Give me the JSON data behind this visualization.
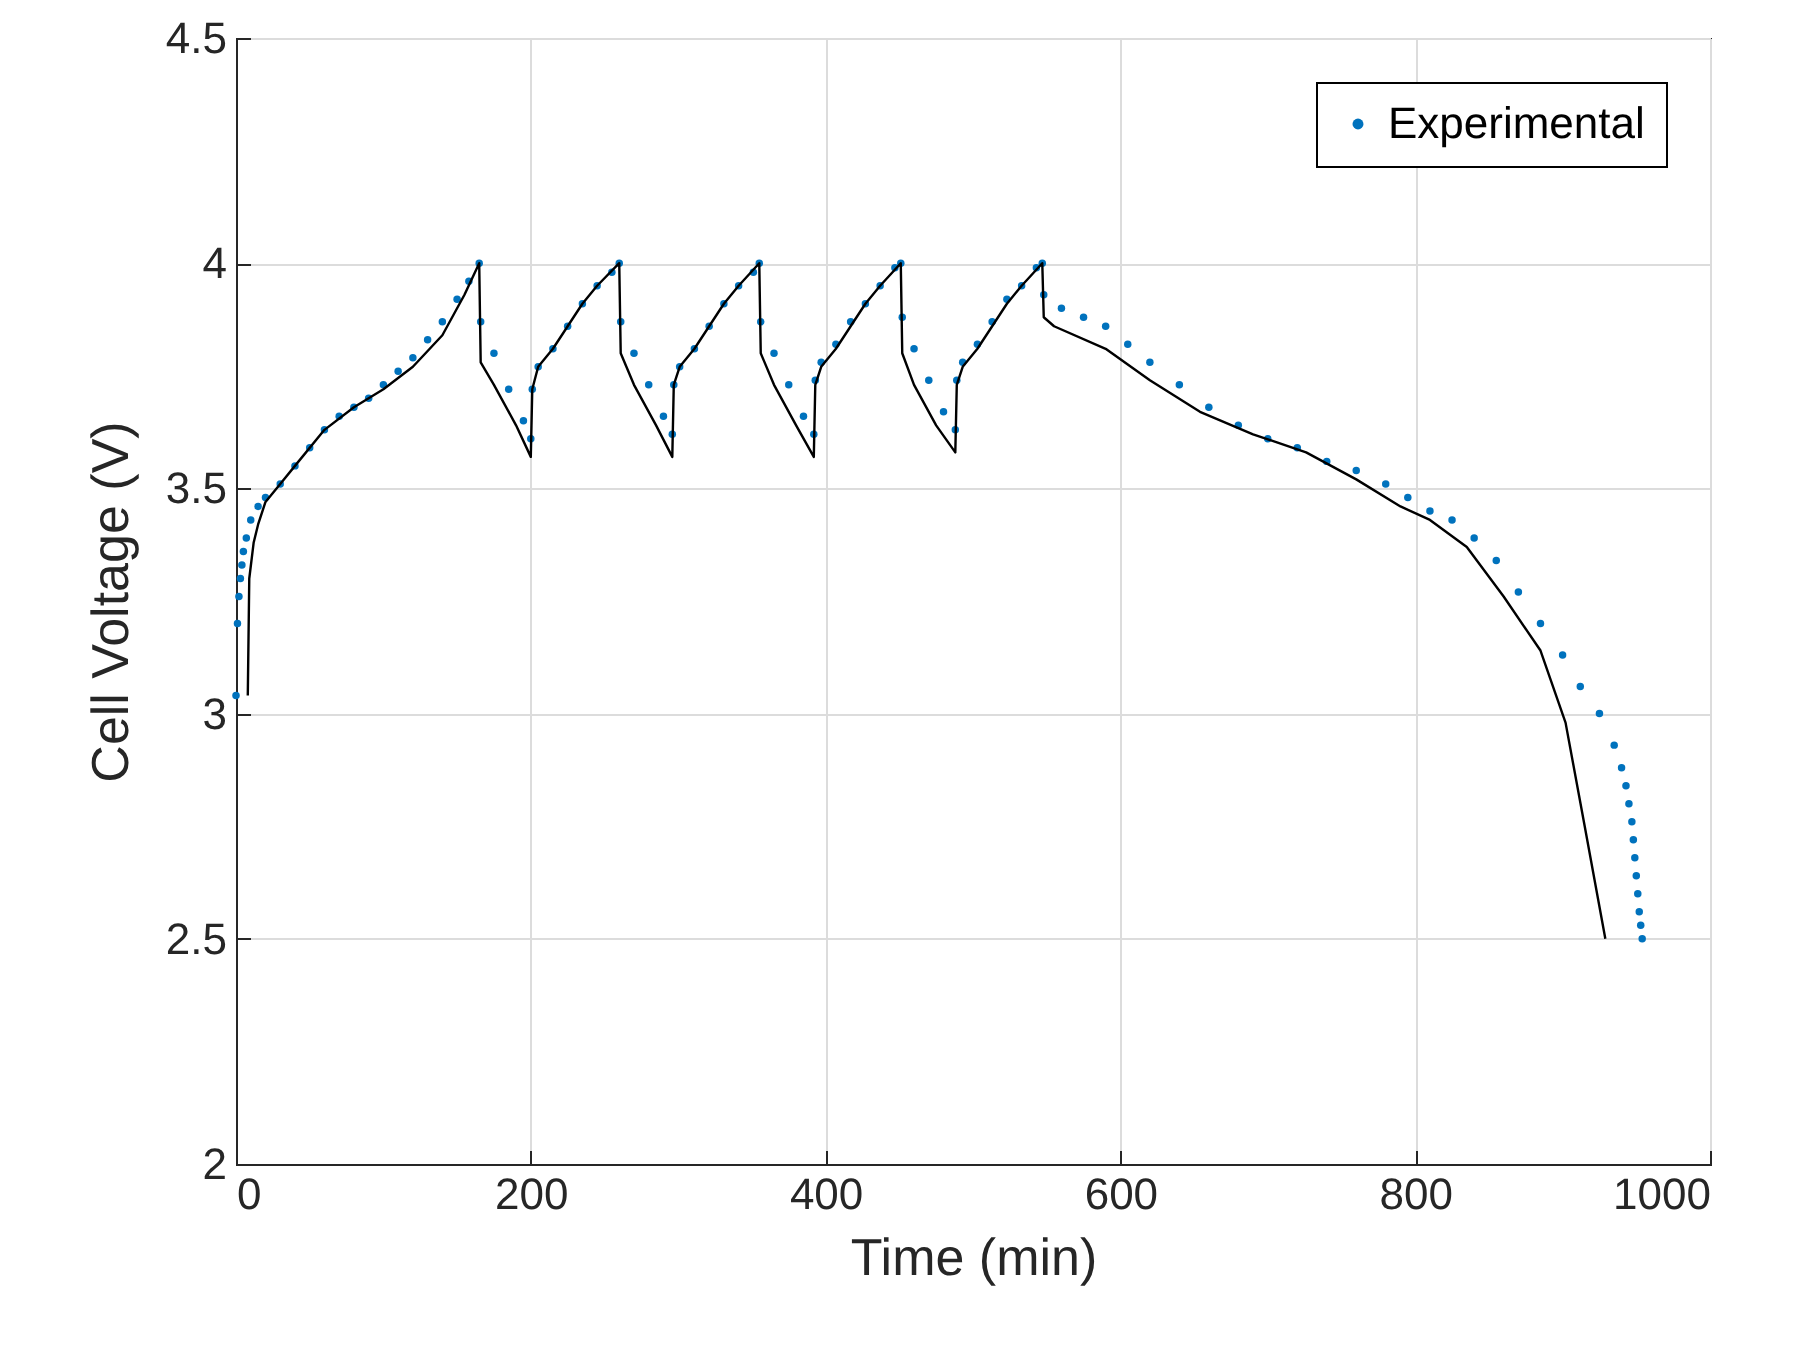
{
  "chart_data": {
    "type": "scatter",
    "xlabel": "Time (min)",
    "ylabel": "Cell Voltage (V)",
    "xlim": [
      0,
      1000
    ],
    "ylim": [
      2,
      4.5
    ],
    "xticks": [
      0,
      200,
      400,
      600,
      800,
      1000
    ],
    "yticks": [
      2,
      2.5,
      3,
      3.5,
      4,
      4.5
    ],
    "grid": true,
    "legend": "top right",
    "marker": "circle",
    "series": [
      {
        "name": "Experimental",
        "color": "#0072bd",
        "x": [
          0,
          1,
          2,
          3,
          4,
          5,
          7,
          10,
          15,
          20,
          30,
          40,
          50,
          60,
          70,
          80,
          90,
          100,
          110,
          120,
          130,
          140,
          150,
          158,
          165,
          166,
          175,
          185,
          195,
          200,
          201,
          205,
          215,
          225,
          235,
          245,
          255,
          260,
          261,
          270,
          280,
          290,
          296,
          297,
          301,
          311,
          321,
          331,
          341,
          351,
          355,
          356,
          365,
          375,
          385,
          392,
          393,
          397,
          407,
          417,
          427,
          437,
          447,
          451,
          452,
          460,
          470,
          480,
          488,
          489,
          493,
          503,
          513,
          523,
          533,
          543,
          547,
          548,
          560,
          575,
          590,
          605,
          620,
          640,
          660,
          680,
          700,
          720,
          740,
          760,
          780,
          795,
          810,
          825,
          840,
          855,
          870,
          885,
          900,
          912,
          925,
          935,
          940,
          943,
          945,
          947,
          948,
          949,
          950,
          951,
          952,
          953,
          954
        ],
        "values": [
          3.04,
          3.2,
          3.26,
          3.3,
          3.33,
          3.36,
          3.39,
          3.43,
          3.46,
          3.48,
          3.51,
          3.55,
          3.59,
          3.63,
          3.66,
          3.68,
          3.7,
          3.73,
          3.76,
          3.79,
          3.83,
          3.87,
          3.92,
          3.96,
          4.0,
          3.87,
          3.8,
          3.72,
          3.65,
          3.61,
          3.72,
          3.77,
          3.81,
          3.86,
          3.91,
          3.95,
          3.98,
          4.0,
          3.87,
          3.8,
          3.73,
          3.66,
          3.62,
          3.73,
          3.77,
          3.81,
          3.86,
          3.91,
          3.95,
          3.98,
          4.0,
          3.87,
          3.8,
          3.73,
          3.66,
          3.62,
          3.74,
          3.78,
          3.82,
          3.87,
          3.91,
          3.95,
          3.99,
          4.0,
          3.88,
          3.81,
          3.74,
          3.67,
          3.63,
          3.74,
          3.78,
          3.82,
          3.87,
          3.92,
          3.95,
          3.99,
          4.0,
          3.93,
          3.9,
          3.88,
          3.86,
          3.82,
          3.78,
          3.73,
          3.68,
          3.64,
          3.61,
          3.59,
          3.56,
          3.54,
          3.51,
          3.48,
          3.45,
          3.43,
          3.39,
          3.34,
          3.27,
          3.2,
          3.13,
          3.06,
          3.0,
          2.93,
          2.88,
          2.84,
          2.8,
          2.76,
          2.72,
          2.68,
          2.64,
          2.6,
          2.56,
          2.53,
          2.5
        ]
      },
      {
        "type": "line",
        "color": "#000000",
        "marker": "none",
        "line_style": "solid",
        "x": [
          8,
          9,
          12,
          15,
          20,
          30,
          40,
          60,
          80,
          100,
          120,
          140,
          155,
          165,
          166,
          175,
          190,
          200,
          201,
          205,
          215,
          225,
          235,
          245,
          260,
          261,
          270,
          285,
          296,
          297,
          301,
          311,
          321,
          331,
          341,
          355,
          356,
          365,
          380,
          392,
          393,
          397,
          407,
          417,
          427,
          437,
          451,
          452,
          460,
          475,
          488,
          489,
          493,
          503,
          513,
          523,
          533,
          547,
          548,
          555,
          590,
          620,
          654,
          690,
          726,
          760,
          790,
          810,
          835,
          860,
          885,
          902,
          915,
          929
        ],
        "values": [
          3.04,
          3.3,
          3.38,
          3.42,
          3.47,
          3.51,
          3.55,
          3.63,
          3.68,
          3.72,
          3.77,
          3.84,
          3.93,
          4.0,
          3.78,
          3.73,
          3.64,
          3.57,
          3.72,
          3.77,
          3.81,
          3.86,
          3.91,
          3.95,
          4.0,
          3.8,
          3.73,
          3.64,
          3.57,
          3.73,
          3.77,
          3.81,
          3.86,
          3.91,
          3.95,
          4.0,
          3.8,
          3.73,
          3.64,
          3.57,
          3.73,
          3.77,
          3.81,
          3.86,
          3.91,
          3.95,
          4.0,
          3.8,
          3.73,
          3.64,
          3.58,
          3.73,
          3.77,
          3.81,
          3.86,
          3.91,
          3.95,
          4.0,
          3.88,
          3.86,
          3.81,
          3.74,
          3.67,
          3.62,
          3.58,
          3.52,
          3.46,
          3.43,
          3.37,
          3.26,
          3.14,
          2.98,
          2.75,
          2.5
        ]
      }
    ]
  }
}
